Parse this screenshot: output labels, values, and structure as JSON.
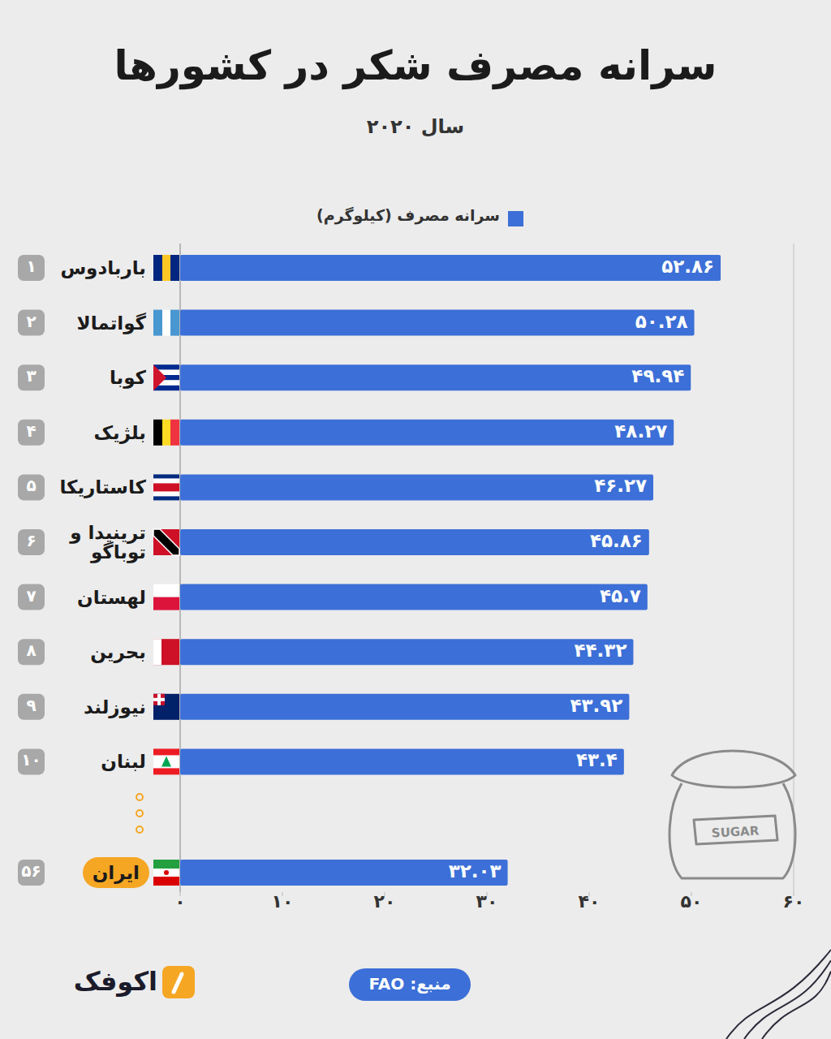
{
  "chart_data": {
    "type": "bar",
    "orientation": "horizontal",
    "title": "سرانه مصرف شکر در کشورها",
    "subtitle": "سال ۲۰۲۰",
    "categories": [
      "باربادوس",
      "گواتمالا",
      "کوبا",
      "بلژیک",
      "کاستاریکا",
      "ترینیدا و توباگو",
      "لهستان",
      "بحرین",
      "نیوزلند",
      "لبنان",
      "ایران"
    ],
    "rank_labels": [
      "۱",
      "۲",
      "۳",
      "۴",
      "۵",
      "۶",
      "۷",
      "۸",
      "۹",
      "۱۰",
      "۵۶"
    ],
    "series": [
      {
        "name": "سرانه مصرف (کیلوگرم)",
        "color": "#3c6fd7",
        "values": [
          52.86,
          50.28,
          49.94,
          48.27,
          46.27,
          45.86,
          45.7,
          44.32,
          43.92,
          43.4,
          32.03
        ],
        "value_labels": [
          "۵۲.۸۶",
          "۵۰.۲۸",
          "۴۹.۹۴",
          "۴۸.۲۷",
          "۴۶.۲۷",
          "۴۵.۸۶",
          "۴۵.۷",
          "۴۴.۳۲",
          "۴۳.۹۲",
          "۴۳.۴",
          "۳۲.۰۳"
        ]
      }
    ],
    "xlim": [
      0,
      60
    ],
    "xticks": [
      {
        "value": 0,
        "label": "۰"
      },
      {
        "value": 10,
        "label": "۱۰"
      },
      {
        "value": 20,
        "label": "۲۰"
      },
      {
        "value": 30,
        "label": "۳۰"
      },
      {
        "value": 40,
        "label": "۴۰"
      },
      {
        "value": 50,
        "label": "۵۰"
      },
      {
        "value": 60,
        "label": "۶۰"
      }
    ],
    "grid": false,
    "data_labels": true,
    "legend": "top",
    "annotations": [
      "SUGAR"
    ],
    "source": "منبع: FAO",
    "logo": "اکوفک"
  }
}
